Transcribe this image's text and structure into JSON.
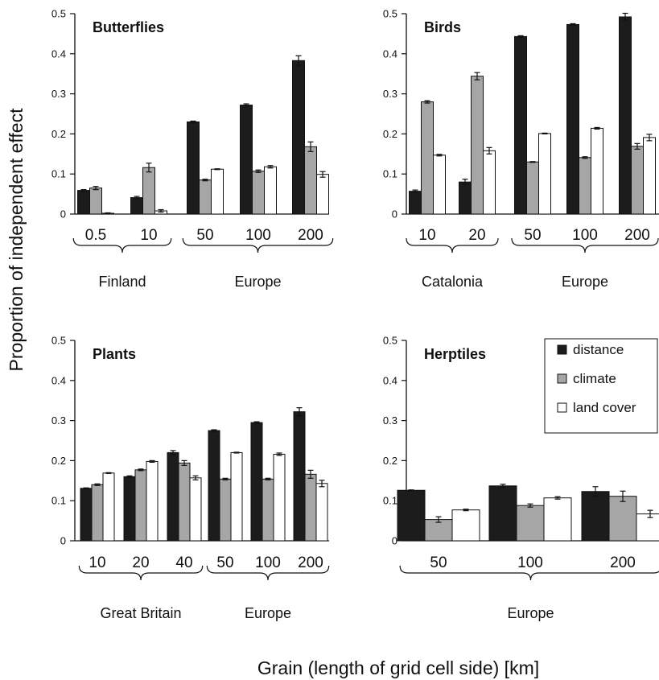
{
  "ylabel": "Proportion of independent effect",
  "xlabel": "Grain (length of grid cell side) [km]",
  "legend": {
    "placement": "inside top-right of Herptiles panel",
    "entries": [
      {
        "label": "distance",
        "color": "#1c1c1c"
      },
      {
        "label": "climate",
        "color": "#a6a6a6"
      },
      {
        "label": "land cover",
        "color": "#ffffff"
      }
    ]
  },
  "chart_data": [
    {
      "type": "bar",
      "title": "Butterflies",
      "ylim": [
        0,
        0.5
      ],
      "yticks": [
        "0",
        "0.1",
        "0.2",
        "0.3",
        "0.4",
        "0.5"
      ],
      "categories": [
        "0.5",
        "10",
        "50",
        "100",
        "200"
      ],
      "regions": [
        {
          "label": "Finland",
          "span": [
            0,
            1
          ]
        },
        {
          "label": "Europe",
          "span": [
            2,
            4
          ]
        }
      ],
      "series": [
        {
          "name": "distance",
          "values": [
            0.059,
            0.041,
            0.23,
            0.272,
            0.383
          ],
          "errors": [
            0.002,
            0.003,
            0.002,
            0.003,
            0.012
          ]
        },
        {
          "name": "climate",
          "values": [
            0.065,
            0.116,
            0.085,
            0.107,
            0.168
          ],
          "errors": [
            0.004,
            0.011,
            0.002,
            0.003,
            0.012
          ]
        },
        {
          "name": "land cover",
          "values": [
            0.002,
            0.008,
            0.112,
            0.118,
            0.099
          ],
          "errors": [
            0.001,
            0.003,
            0.001,
            0.003,
            0.007
          ]
        }
      ]
    },
    {
      "type": "bar",
      "title": "Birds",
      "ylim": [
        0,
        0.5
      ],
      "yticks": [
        "0",
        "0.1",
        "0.2",
        "0.3",
        "0.4",
        "0.5"
      ],
      "categories": [
        "10",
        "20",
        "50",
        "100",
        "200"
      ],
      "regions": [
        {
          "label": "Catalonia",
          "span": [
            0,
            1
          ]
        },
        {
          "label": "Europe",
          "span": [
            2,
            4
          ]
        }
      ],
      "series": [
        {
          "name": "distance",
          "values": [
            0.057,
            0.08,
            0.443,
            0.473,
            0.492
          ],
          "errors": [
            0.003,
            0.007,
            0.002,
            0.002,
            0.009
          ]
        },
        {
          "name": "climate",
          "values": [
            0.28,
            0.344,
            0.13,
            0.141,
            0.169
          ],
          "errors": [
            0.003,
            0.009,
            0.001,
            0.002,
            0.007
          ]
        },
        {
          "name": "land cover",
          "values": [
            0.147,
            0.158,
            0.201,
            0.214,
            0.191
          ],
          "errors": [
            0.002,
            0.008,
            0.001,
            0.002,
            0.008
          ]
        }
      ]
    },
    {
      "type": "bar",
      "title": "Plants",
      "ylim": [
        0,
        0.5
      ],
      "yticks": [
        "0",
        "0.1",
        "0.2",
        "0.3",
        "0.4",
        "0.5"
      ],
      "categories": [
        "10",
        "20",
        "40",
        "50",
        "100",
        "200"
      ],
      "regions": [
        {
          "label": "Great Britain",
          "span": [
            0,
            2
          ]
        },
        {
          "label": "Europe",
          "span": [
            3,
            5
          ]
        }
      ],
      "series": [
        {
          "name": "distance",
          "values": [
            0.131,
            0.16,
            0.22,
            0.275,
            0.295,
            0.322
          ],
          "errors": [
            0.001,
            0.002,
            0.005,
            0.002,
            0.002,
            0.01
          ]
        },
        {
          "name": "climate",
          "values": [
            0.14,
            0.177,
            0.194,
            0.154,
            0.154,
            0.166
          ],
          "errors": [
            0.002,
            0.002,
            0.006,
            0.002,
            0.002,
            0.01
          ]
        },
        {
          "name": "land cover",
          "values": [
            0.169,
            0.198,
            0.157,
            0.22,
            0.216,
            0.143
          ],
          "errors": [
            0.001,
            0.002,
            0.005,
            0.001,
            0.003,
            0.008
          ]
        }
      ]
    },
    {
      "type": "bar",
      "title": "Herptiles",
      "ylim": [
        0,
        0.5
      ],
      "yticks": [
        "0",
        "0.1",
        "0.2",
        "0.3",
        "0.4",
        "0.5"
      ],
      "categories": [
        "50",
        "100",
        "200"
      ],
      "regions": [
        {
          "label": "Europe",
          "span": [
            0,
            2
          ]
        }
      ],
      "series": [
        {
          "name": "distance",
          "values": [
            0.126,
            0.137,
            0.123
          ],
          "errors": [
            0.001,
            0.004,
            0.012
          ]
        },
        {
          "name": "climate",
          "values": [
            0.053,
            0.088,
            0.111
          ],
          "errors": [
            0.007,
            0.004,
            0.013
          ]
        },
        {
          "name": "land cover",
          "values": [
            0.077,
            0.107,
            0.067
          ],
          "errors": [
            0.002,
            0.003,
            0.009
          ]
        }
      ]
    }
  ]
}
